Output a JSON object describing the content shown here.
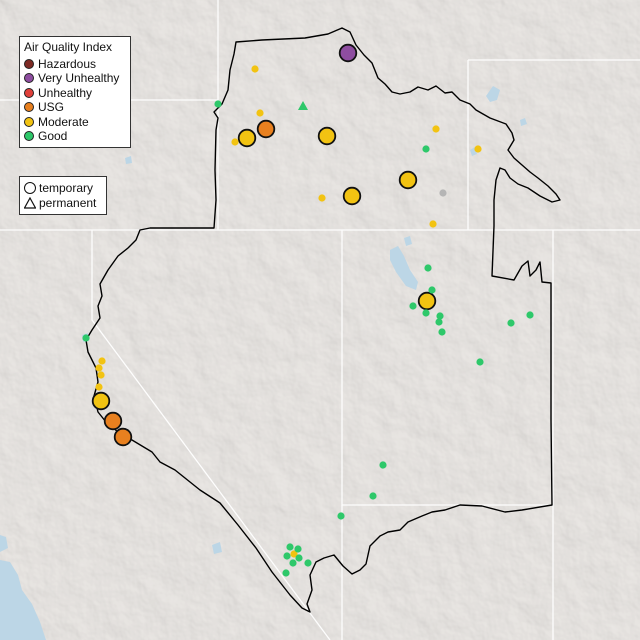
{
  "legend": {
    "title": "Air Quality Index",
    "categories": [
      {
        "label": "Hazardous",
        "color": "#7e2a24"
      },
      {
        "label": "Very Unhealthy",
        "color": "#8e4da0"
      },
      {
        "label": "Unhealthy",
        "color": "#e0403a"
      },
      {
        "label": "USG",
        "color": "#e8801f"
      },
      {
        "label": "Moderate",
        "color": "#f2c312"
      },
      {
        "label": "Good",
        "color": "#2ec86a"
      }
    ],
    "monitor_types": [
      {
        "label": "temporary",
        "icon": "circle-icon"
      },
      {
        "label": "permanent",
        "icon": "triangle-icon"
      }
    ]
  },
  "colors": {
    "land": "#e7e4e1",
    "water": "#bcd6e6",
    "state_border": "#ffffff",
    "region_outline": "#000000",
    "no_data": "#b5b5b5"
  }
}
